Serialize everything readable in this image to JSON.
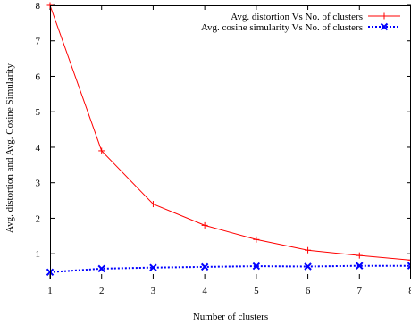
{
  "chart_data": {
    "type": "line",
    "title": "",
    "xlabel": "Number of clusters",
    "ylabel": "Avg. distortion and Avg. Cosine Simularity",
    "xlim": [
      1,
      8
    ],
    "ylim": [
      0.3,
      8
    ],
    "x_ticks": [
      "1",
      "2",
      "3",
      "4",
      "5",
      "6",
      "7",
      "8"
    ],
    "y_ticks": [
      "1",
      "2",
      "3",
      "4",
      "5",
      "6",
      "7",
      "8"
    ],
    "grid": false,
    "legend_position": "top-right",
    "x": [
      1,
      2,
      3,
      4,
      5,
      6,
      7,
      8
    ],
    "series": [
      {
        "name": "Avg. distortion Vs No. of clusters",
        "values": [
          8.0,
          3.9,
          2.4,
          1.8,
          1.4,
          1.1,
          0.95,
          0.82
        ],
        "color": "#ff0000",
        "marker": "plus",
        "line_style": "solid"
      },
      {
        "name": "Avg. cosine simularity Vs No. of clusters",
        "values": [
          0.48,
          0.58,
          0.61,
          0.63,
          0.65,
          0.64,
          0.66,
          0.66
        ],
        "color": "#0000ff",
        "marker": "cross",
        "line_style": "dotted"
      }
    ]
  }
}
